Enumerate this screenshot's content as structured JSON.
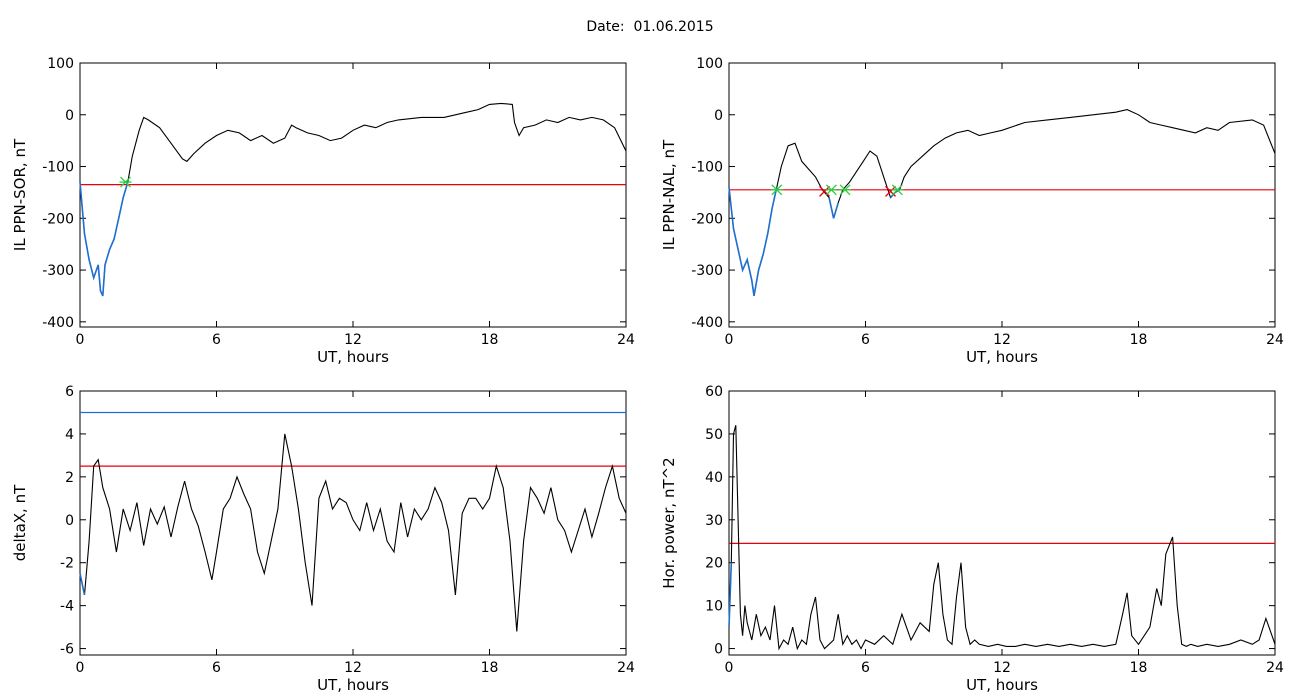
{
  "figure": {
    "date_label": "Date:",
    "date_value": "01.06.2015"
  },
  "colors": {
    "axes": "#000000",
    "series": "#000000",
    "threshold_red": "#e8000b",
    "threshold_blue": "#1f6fd1",
    "highlight_blue": "#1f6fd1",
    "marker_green": "#2ecc40",
    "marker_red": "#e8000b"
  },
  "chart_data": [
    {
      "id": "sor",
      "type": "line",
      "xlabel": "UT, hours",
      "ylabel": "IL PPN-SOR, nT",
      "xlim": [
        0,
        24
      ],
      "ylim": [
        -410,
        100
      ],
      "xticks": [
        0,
        6,
        12,
        18,
        24
      ],
      "yticks": [
        100,
        0,
        -100,
        -200,
        -300,
        -400
      ],
      "threshold": -135,
      "x": [
        0,
        0.2,
        0.4,
        0.6,
        0.8,
        0.9,
        1.0,
        1.1,
        1.3,
        1.5,
        1.7,
        1.9,
        2.1,
        2.3,
        2.6,
        2.8,
        3.0,
        3.5,
        4.0,
        4.5,
        4.7,
        5.0,
        5.5,
        6.0,
        6.5,
        7.0,
        7.5,
        8.0,
        8.5,
        9.0,
        9.3,
        9.5,
        10.0,
        10.5,
        11.0,
        11.5,
        12.0,
        12.5,
        13.0,
        13.5,
        14.0,
        15.0,
        16.0,
        17.0,
        17.5,
        18.0,
        18.5,
        19.0,
        19.1,
        19.3,
        19.5,
        20.0,
        20.5,
        21.0,
        21.5,
        22.0,
        22.5,
        23.0,
        23.5,
        24.0
      ],
      "y": [
        -130,
        -230,
        -280,
        -315,
        -290,
        -340,
        -350,
        -290,
        -260,
        -240,
        -200,
        -160,
        -130,
        -80,
        -30,
        -5,
        -10,
        -25,
        -55,
        -85,
        -90,
        -75,
        -55,
        -40,
        -30,
        -35,
        -50,
        -40,
        -55,
        -45,
        -20,
        -25,
        -35,
        -40,
        -50,
        -45,
        -30,
        -20,
        -25,
        -15,
        -10,
        -5,
        -5,
        5,
        10,
        20,
        22,
        20,
        -15,
        -40,
        -25,
        -20,
        -10,
        -15,
        -5,
        -10,
        -5,
        -10,
        -25,
        -70
      ],
      "highlight_range": [
        0,
        2.1
      ],
      "markers": [
        {
          "x": 2.0,
          "y": -130,
          "symbol": "asterisk",
          "color": "green"
        }
      ]
    },
    {
      "id": "nal",
      "type": "line",
      "xlabel": "UT, hours",
      "ylabel": "IL PPN-NAL, nT",
      "xlim": [
        0,
        24
      ],
      "ylim": [
        -410,
        100
      ],
      "xticks": [
        0,
        6,
        12,
        18,
        24
      ],
      "yticks": [
        100,
        0,
        -100,
        -200,
        -300,
        -400
      ],
      "threshold": -145,
      "x": [
        0,
        0.2,
        0.4,
        0.6,
        0.8,
        1.0,
        1.1,
        1.3,
        1.5,
        1.7,
        1.9,
        2.1,
        2.3,
        2.6,
        2.9,
        3.2,
        3.5,
        3.8,
        4.1,
        4.4,
        4.6,
        4.8,
        5.0,
        5.3,
        5.6,
        5.9,
        6.2,
        6.5,
        6.8,
        7.1,
        7.3,
        7.5,
        7.7,
        8.0,
        8.5,
        9.0,
        9.5,
        10.0,
        10.5,
        11.0,
        11.5,
        12.0,
        13.0,
        14.0,
        15.0,
        16.0,
        17.0,
        17.5,
        18.0,
        18.5,
        19.0,
        19.5,
        20.0,
        20.5,
        21.0,
        21.5,
        22.0,
        23.0,
        23.5,
        24.0
      ],
      "y": [
        -140,
        -220,
        -260,
        -300,
        -280,
        -320,
        -350,
        -300,
        -270,
        -230,
        -180,
        -140,
        -100,
        -60,
        -55,
        -90,
        -105,
        -120,
        -145,
        -160,
        -200,
        -170,
        -145,
        -130,
        -110,
        -90,
        -70,
        -80,
        -120,
        -160,
        -150,
        -145,
        -120,
        -100,
        -80,
        -60,
        -45,
        -35,
        -30,
        -40,
        -35,
        -30,
        -15,
        -10,
        -5,
        0,
        5,
        10,
        0,
        -15,
        -20,
        -25,
        -30,
        -35,
        -25,
        -30,
        -15,
        -10,
        -20,
        -75
      ],
      "highlight_ranges": [
        [
          0,
          2.1
        ],
        [
          4.3,
          4.9
        ],
        [
          6.9,
          7.5
        ]
      ],
      "markers": [
        {
          "x": 2.1,
          "y": -145,
          "symbol": "asterisk",
          "color": "green"
        },
        {
          "x": 4.2,
          "y": -148,
          "symbol": "cross",
          "color": "red"
        },
        {
          "x": 4.5,
          "y": -145,
          "symbol": "asterisk",
          "color": "green"
        },
        {
          "x": 5.1,
          "y": -145,
          "symbol": "asterisk",
          "color": "green"
        },
        {
          "x": 7.1,
          "y": -148,
          "symbol": "cross",
          "color": "red"
        },
        {
          "x": 7.4,
          "y": -145,
          "symbol": "asterisk",
          "color": "green"
        }
      ]
    },
    {
      "id": "deltax",
      "type": "line",
      "xlabel": "UT, hours",
      "ylabel": "deltaX, nT",
      "xlim": [
        0,
        24
      ],
      "ylim": [
        -6.3,
        6
      ],
      "xticks": [
        0,
        6,
        12,
        18,
        24
      ],
      "yticks": [
        6,
        4,
        2,
        0,
        -2,
        -4,
        -6
      ],
      "thresholds": [
        {
          "value": 5.0,
          "color": "blue"
        },
        {
          "value": 2.5,
          "color": "red"
        }
      ],
      "x": [
        0,
        0.2,
        0.4,
        0.6,
        0.8,
        1.0,
        1.3,
        1.6,
        1.9,
        2.2,
        2.5,
        2.8,
        3.1,
        3.4,
        3.7,
        4.0,
        4.3,
        4.6,
        4.9,
        5.2,
        5.5,
        5.8,
        6.0,
        6.3,
        6.6,
        6.9,
        7.2,
        7.5,
        7.8,
        8.1,
        8.4,
        8.7,
        9.0,
        9.3,
        9.6,
        9.9,
        10.2,
        10.5,
        10.8,
        11.1,
        11.4,
        11.7,
        12.0,
        12.3,
        12.6,
        12.9,
        13.2,
        13.5,
        13.8,
        14.1,
        14.4,
        14.7,
        15.0,
        15.3,
        15.6,
        15.9,
        16.2,
        16.5,
        16.8,
        17.1,
        17.4,
        17.7,
        18.0,
        18.3,
        18.6,
        18.9,
        19.2,
        19.5,
        19.8,
        20.1,
        20.4,
        20.7,
        21.0,
        21.3,
        21.6,
        21.9,
        22.2,
        22.5,
        22.8,
        23.1,
        23.4,
        23.7,
        24.0
      ],
      "y": [
        -2.5,
        -3.5,
        -1,
        2.5,
        2.8,
        1.5,
        0.5,
        -1.5,
        0.5,
        -0.5,
        0.8,
        -1.2,
        0.5,
        -0.2,
        0.6,
        -0.8,
        0.6,
        1.8,
        0.5,
        -0.3,
        -1.5,
        -2.8,
        -1.5,
        0.5,
        1.0,
        2.0,
        1.2,
        0.5,
        -1.5,
        -2.5,
        -1.0,
        0.5,
        4.0,
        2.5,
        0.5,
        -2.0,
        -4.0,
        1.0,
        1.8,
        0.5,
        1.0,
        0.8,
        0.0,
        -0.5,
        0.8,
        -0.5,
        0.5,
        -1.0,
        -1.5,
        0.8,
        -0.8,
        0.5,
        0.0,
        0.5,
        1.5,
        0.8,
        -0.5,
        -3.5,
        0.3,
        1.0,
        1.0,
        0.5,
        1.0,
        2.5,
        1.5,
        -1.0,
        -5.2,
        -1.0,
        1.5,
        1.0,
        0.3,
        1.5,
        0.0,
        -0.5,
        -1.5,
        -0.5,
        0.5,
        -0.8,
        0.3,
        1.5,
        2.5,
        1.0,
        0.3
      ],
      "highlight_range": [
        0,
        0.3
      ]
    },
    {
      "id": "power",
      "type": "line",
      "xlabel": "UT, hours",
      "ylabel": "Hor. power, nT^2",
      "xlim": [
        0,
        24
      ],
      "ylim": [
        -1.5,
        60
      ],
      "xticks": [
        0,
        6,
        12,
        18,
        24
      ],
      "yticks": [
        60,
        50,
        40,
        30,
        20,
        10,
        0
      ],
      "threshold": 24.5,
      "x": [
        0,
        0.1,
        0.2,
        0.3,
        0.4,
        0.5,
        0.6,
        0.7,
        0.8,
        1.0,
        1.2,
        1.4,
        1.6,
        1.8,
        2.0,
        2.2,
        2.4,
        2.6,
        2.8,
        3.0,
        3.2,
        3.4,
        3.6,
        3.8,
        4.0,
        4.2,
        4.4,
        4.6,
        4.8,
        5.0,
        5.2,
        5.4,
        5.6,
        5.8,
        6.0,
        6.4,
        6.8,
        7.2,
        7.6,
        8.0,
        8.4,
        8.8,
        9.0,
        9.2,
        9.4,
        9.6,
        9.8,
        10.0,
        10.2,
        10.4,
        10.6,
        10.8,
        11.0,
        11.4,
        11.8,
        12.2,
        12.6,
        13.0,
        13.5,
        14.0,
        14.5,
        15.0,
        15.5,
        16.0,
        16.5,
        17.0,
        17.3,
        17.5,
        17.7,
        18.0,
        18.5,
        18.8,
        19.0,
        19.2,
        19.5,
        19.7,
        19.9,
        20.1,
        20.3,
        20.6,
        21.0,
        21.5,
        22.0,
        22.5,
        23.0,
        23.3,
        23.6,
        23.8,
        24.0
      ],
      "y": [
        5,
        20,
        50,
        52,
        30,
        8,
        3,
        10,
        6,
        2,
        8,
        3,
        5,
        2,
        10,
        0,
        2,
        1,
        5,
        0,
        2,
        1,
        8,
        12,
        2,
        0,
        1,
        2,
        8,
        1,
        3,
        1,
        2,
        0,
        2,
        1,
        3,
        1,
        8,
        2,
        6,
        4,
        15,
        20,
        8,
        2,
        1,
        12,
        20,
        5,
        1,
        2,
        1,
        0.5,
        1,
        0.5,
        0.5,
        1,
        0.5,
        1,
        0.5,
        1,
        0.5,
        1,
        0.5,
        1,
        8,
        13,
        3,
        1,
        5,
        14,
        10,
        22,
        26,
        10,
        1,
        0.5,
        1,
        0.5,
        1,
        0.5,
        1,
        2,
        1,
        2,
        7,
        4,
        1
      ],
      "highlight_range": [
        0,
        0.15
      ]
    }
  ]
}
